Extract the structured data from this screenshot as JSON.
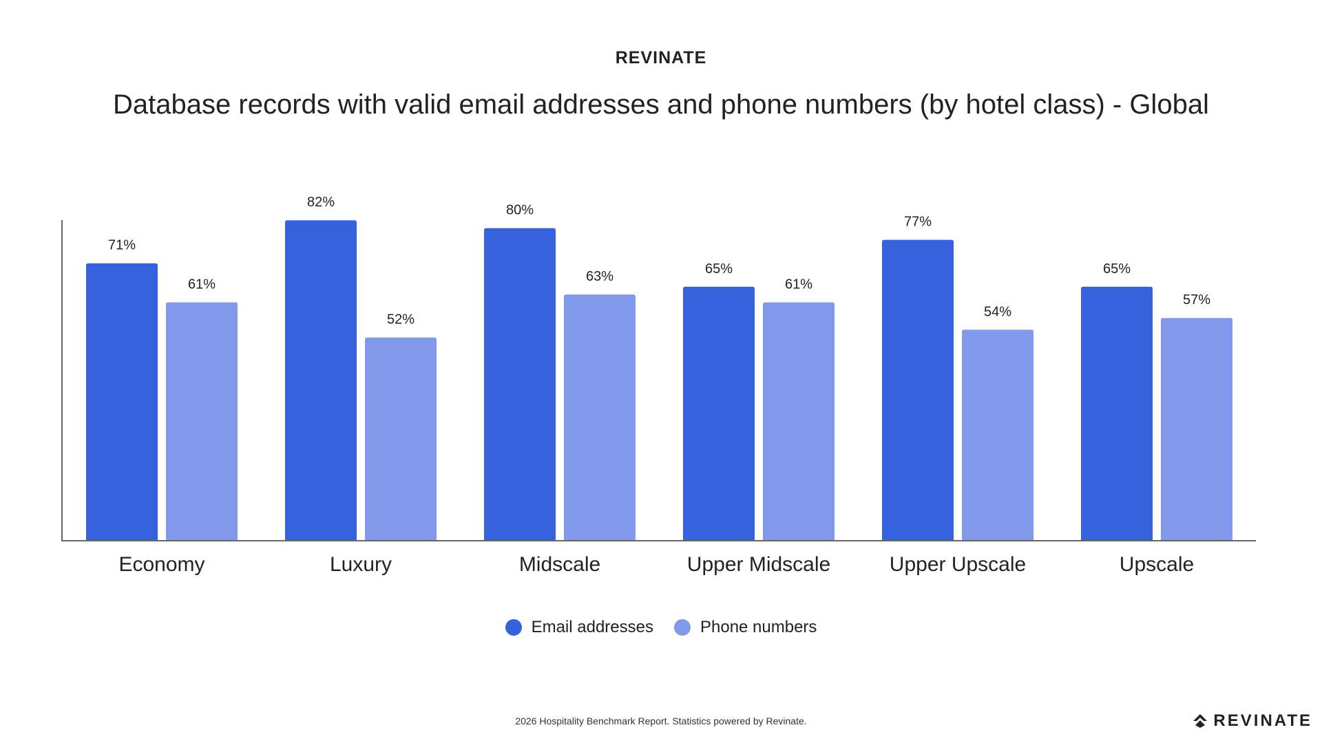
{
  "header": {
    "brand": "REVINATE"
  },
  "chart_data": {
    "type": "bar",
    "title": "Database records with valid email addresses and phone numbers (by hotel class) - Global",
    "categories": [
      "Economy",
      "Luxury",
      "Midscale",
      "Upper Midscale",
      "Upper Upscale",
      "Upscale"
    ],
    "series": [
      {
        "name": "Email addresses",
        "values": [
          71,
          82,
          80,
          65,
          77,
          65
        ],
        "color": "#3662DE"
      },
      {
        "name": "Phone numbers",
        "values": [
          61,
          52,
          63,
          61,
          54,
          57
        ],
        "color": "#8299EB"
      }
    ],
    "value_suffix": "%",
    "ylim": [
      0,
      100
    ],
    "grid": false,
    "legend_position": "bottom-center"
  },
  "footer": {
    "text": "2026 Hospitality Benchmark Report. Statistics powered by Revinate."
  },
  "logo": {
    "text": "REVINATE",
    "icon": "revinate-logo-icon"
  }
}
